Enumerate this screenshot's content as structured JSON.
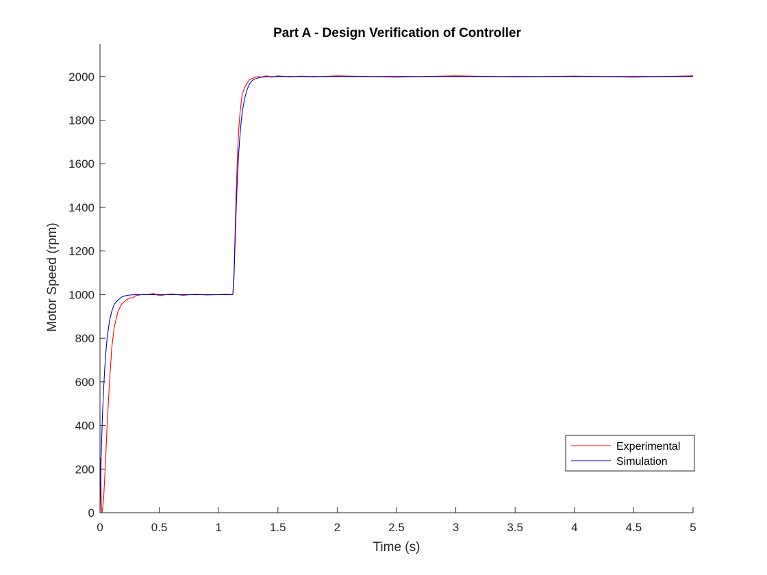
{
  "chart_data": {
    "type": "line",
    "title": "Part A - Design Verification of Controller",
    "xlabel": "Time (s)",
    "ylabel": "Motor Speed (rpm)",
    "xlim": [
      0,
      5
    ],
    "ylim": [
      0,
      2150
    ],
    "xticks": [
      0,
      0.5,
      1,
      1.5,
      2,
      2.5,
      3,
      3.5,
      4,
      4.5,
      5
    ],
    "xtick_labels": [
      "0",
      "0.5",
      "1",
      "1.5",
      "2",
      "2.5",
      "3",
      "3.5",
      "4",
      "4.5",
      "5"
    ],
    "yticks": [
      0,
      200,
      400,
      600,
      800,
      1000,
      1200,
      1400,
      1600,
      1800,
      2000
    ],
    "ytick_labels": [
      "0",
      "200",
      "400",
      "600",
      "800",
      "1000",
      "1200",
      "1400",
      "1600",
      "1800",
      "2000"
    ],
    "grid": false,
    "legend_position": "bottom-right",
    "series": [
      {
        "name": "Experimental",
        "color": "#ff0000",
        "x": [
          0,
          0.005,
          0.01,
          0.015,
          0.02,
          0.03,
          0.04,
          0.05,
          0.06,
          0.08,
          0.1,
          0.12,
          0.15,
          0.18,
          0.2,
          0.22,
          0.25,
          0.28,
          0.3,
          0.35,
          0.4,
          0.45,
          0.5,
          0.6,
          0.7,
          0.8,
          0.9,
          1.0,
          1.05,
          1.1,
          1.11,
          1.12,
          1.13,
          1.14,
          1.15,
          1.16,
          1.17,
          1.18,
          1.19,
          1.2,
          1.22,
          1.24,
          1.26,
          1.28,
          1.3,
          1.33,
          1.36,
          1.4,
          1.45,
          1.5,
          1.6,
          1.7,
          1.8,
          2.0,
          2.5,
          3.0,
          3.5,
          4.0,
          4.5,
          5.0
        ],
        "y": [
          0,
          250,
          80,
          0,
          10,
          60,
          160,
          280,
          400,
          600,
          760,
          850,
          920,
          955,
          965,
          975,
          985,
          985,
          995,
          1000,
          1000,
          1005,
          995,
          1003,
          997,
          1002,
          998,
          1000,
          1002,
          1000,
          1000,
          1000,
          1100,
          1300,
          1500,
          1650,
          1760,
          1830,
          1880,
          1920,
          1950,
          1970,
          1985,
          1990,
          1995,
          2000,
          1997,
          2003,
          1997,
          2003,
          1998,
          2002,
          1998,
          2003,
          1997,
          2003,
          1998,
          2002,
          1997,
          2003
        ]
      },
      {
        "name": "Simulation",
        "color": "#0000c0",
        "x": [
          0,
          0.01,
          0.02,
          0.03,
          0.04,
          0.05,
          0.06,
          0.08,
          0.1,
          0.12,
          0.15,
          0.18,
          0.2,
          0.25,
          0.3,
          0.35,
          0.4,
          0.5,
          0.7,
          0.9,
          1.0,
          1.1,
          1.12,
          1.13,
          1.14,
          1.15,
          1.16,
          1.17,
          1.18,
          1.19,
          1.2,
          1.22,
          1.24,
          1.26,
          1.28,
          1.3,
          1.35,
          1.4,
          1.5,
          1.7,
          2.0,
          3.0,
          4.0,
          5.0
        ],
        "y": [
          0,
          250,
          440,
          560,
          660,
          740,
          800,
          880,
          925,
          955,
          975,
          988,
          993,
          998,
          1000,
          1000,
          1000,
          1000,
          1000,
          1000,
          1000,
          1000,
          1000,
          1080,
          1250,
          1420,
          1550,
          1650,
          1730,
          1790,
          1840,
          1900,
          1940,
          1965,
          1980,
          1988,
          1996,
          1999,
          2000,
          2000,
          2000,
          2000,
          2000,
          2000
        ]
      }
    ]
  }
}
